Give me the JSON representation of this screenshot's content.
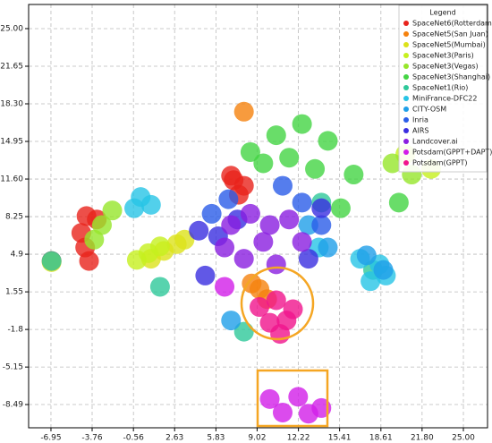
{
  "chart_data": {
    "type": "scatter",
    "xlim": [
      -8.68,
      26.87
    ],
    "ylim": [
      -10.56,
      27.15
    ],
    "xticks": [
      -6.95,
      -3.76,
      -0.56,
      2.63,
      5.83,
      9.02,
      12.22,
      15.41,
      18.61,
      {
        "value": 21.8,
        "label": "21.80"
      },
      {
        "value": 25,
        "label": "25.00"
      }
    ],
    "yticks": [
      {
        "value": 25,
        "label": "25.00"
      },
      21.65,
      {
        "value": 18.3,
        "label": "18.30"
      },
      14.95,
      {
        "value": 11.6,
        "label": "11.60"
      },
      8.25,
      4.9,
      1.55,
      -1.8,
      -5.15,
      -8.49
    ],
    "grid": true,
    "legend_title": "Legend",
    "legend": "upper right",
    "series": [
      {
        "name": "SpaceNet6(Rotterdam)",
        "color": "#e8231c",
        "x": [
          -4.2,
          -3.4,
          -4.6,
          -4.3,
          -4.0,
          7.2,
          8.0,
          7.6,
          7.0,
          -6.9
        ],
        "y": [
          8.3,
          8.0,
          6.8,
          5.5,
          4.3,
          11.5,
          11.0,
          10.2,
          11.9,
          4.3
        ]
      },
      {
        "name": "SpaceNet5(San Juan)",
        "color": "#f5820e",
        "x": [
          8.0,
          9.2,
          8.6,
          9.8
        ],
        "y": [
          17.6,
          1.8,
          2.3,
          0.9
        ]
      },
      {
        "name": "SpaceNet5(Mumbai)",
        "color": "#dce21a",
        "x": [
          0.8,
          1.8,
          2.8,
          3.4,
          -6.9
        ],
        "y": [
          4.5,
          5.2,
          5.8,
          6.2,
          4.2
        ]
      },
      {
        "name": "SpaceNet3(Paris)",
        "color": "#c6f01e",
        "x": [
          -0.3,
          0.6,
          1.5,
          20.5,
          22.5
        ],
        "y": [
          4.4,
          5.0,
          5.6,
          13.8,
          12.5
        ]
      },
      {
        "name": "SpaceNet3(Vegas)",
        "color": "#96e62a",
        "x": [
          -3.0,
          -2.2,
          -3.6,
          19.5,
          21.0
        ],
        "y": [
          7.5,
          8.8,
          6.2,
          13.0,
          12.0
        ]
      },
      {
        "name": "SpaceNet3(Shanghai)",
        "color": "#44d444",
        "x": [
          8.5,
          10.5,
          12.5,
          14.5,
          9.5,
          11.5,
          13.5,
          16.5,
          15.5,
          20.0
        ],
        "y": [
          14.0,
          15.5,
          16.5,
          15.0,
          13.0,
          13.5,
          12.5,
          12.0,
          9.0,
          9.5
        ]
      },
      {
        "name": "SpaceNet1(Rio)",
        "color": "#2ec89a",
        "x": [
          -6.9,
          1.5,
          18.0,
          8.0,
          14.0
        ],
        "y": [
          4.3,
          2.0,
          3.5,
          -2.0,
          9.5
        ]
      },
      {
        "name": "MiniFrance-DFC22",
        "color": "#27c4e6",
        "x": [
          0.0,
          0.8,
          -0.5,
          17.0,
          18.5,
          19.0,
          17.8,
          13.8
        ],
        "y": [
          10.0,
          9.3,
          9.0,
          4.5,
          4.0,
          3.0,
          2.5,
          5.5
        ]
      },
      {
        "name": "CITY-OSM",
        "color": "#1f9fe8",
        "x": [
          17.5,
          18.8,
          13.0,
          14.5,
          7.0
        ],
        "y": [
          4.8,
          3.5,
          7.5,
          5.5,
          -1.0
        ]
      },
      {
        "name": "Inria",
        "color": "#2b5de8",
        "x": [
          5.5,
          6.8,
          12.5,
          14.0,
          11.0
        ],
        "y": [
          8.5,
          9.8,
          9.5,
          7.5,
          11.0
        ]
      },
      {
        "name": "AIRS",
        "color": "#3a2ee0",
        "x": [
          4.5,
          6.0,
          7.5,
          14.0,
          13.0,
          5.0
        ],
        "y": [
          7.0,
          6.5,
          8.0,
          9.0,
          4.5,
          3.0
        ]
      },
      {
        "name": "Landcover.ai",
        "color": "#8a1ee0",
        "x": [
          7.0,
          8.5,
          10.0,
          11.5,
          9.5,
          8.0,
          10.5,
          6.5,
          12.5
        ],
        "y": [
          7.5,
          8.5,
          7.5,
          8.0,
          6.0,
          4.5,
          4.0,
          5.5,
          6.0
        ]
      },
      {
        "name": "Potsdam(GPPT+DAPT)",
        "color": "#d21ee8",
        "x": [
          10.0,
          12.2,
          14.0,
          11.0,
          13.0,
          6.5
        ],
        "y": [
          -8.0,
          -7.8,
          -8.8,
          -9.2,
          -9.3,
          2.0
        ]
      },
      {
        "name": "Potsdam(GPPT)",
        "color": "#f0148c",
        "x": [
          9.2,
          10.5,
          11.8,
          10.0,
          11.3,
          10.8
        ],
        "y": [
          0.2,
          0.8,
          0.0,
          -1.2,
          -1.0,
          -2.2
        ]
      }
    ]
  }
}
